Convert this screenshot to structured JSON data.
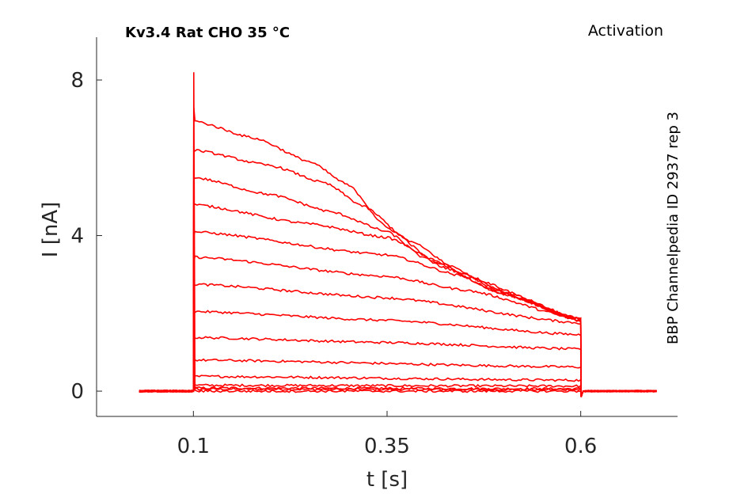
{
  "chart_data": {
    "type": "line",
    "title": "Kv3.4  Rat  CHO  35 °C",
    "protocol": "Activation",
    "side_label": "BBP Channelpedia ID 2937 rep 3",
    "xlabel": "t [s]",
    "ylabel": "I [nA]",
    "xlim": [
      -0.025,
      0.725
    ],
    "ylim": [
      -0.65,
      9.1
    ],
    "x_ticks": [
      0.1,
      0.35,
      0.6
    ],
    "x_tick_labels": [
      "0.1",
      "0.35",
      "0.6"
    ],
    "y_ticks": [
      0,
      4,
      8
    ],
    "y_tick_labels": [
      "0",
      "4",
      "8"
    ],
    "grid": false,
    "line_color": "#ff0000",
    "pulse": {
      "start": 0.1,
      "end": 0.6
    },
    "baseline": {
      "x_start": 0.03,
      "x_end": 0.7,
      "value": 0
    },
    "series": [
      {
        "peak": 0.05,
        "x": [
          0.1,
          0.6
        ],
        "y": [
          0.05,
          0.04
        ]
      },
      {
        "peak": 0.1,
        "x": [
          0.1,
          0.6
        ],
        "y": [
          0.08,
          0.06
        ]
      },
      {
        "peak": 0.22,
        "x": [
          0.1,
          0.6
        ],
        "y": [
          0.15,
          0.13
        ]
      },
      {
        "peak": 0.45,
        "x": [
          0.1,
          0.6
        ],
        "y": [
          0.38,
          0.28
        ]
      },
      {
        "peak": 0.85,
        "x": [
          0.1,
          0.6
        ],
        "y": [
          0.8,
          0.62
        ]
      },
      {
        "peak": 1.4,
        "x": [
          0.1,
          0.35,
          0.6
        ],
        "y": [
          1.38,
          1.25,
          1.08
        ]
      },
      {
        "peak": 2.05,
        "x": [
          0.1,
          0.35,
          0.6
        ],
        "y": [
          2.05,
          1.82,
          1.45
        ]
      },
      {
        "peak": 2.75,
        "x": [
          0.1,
          0.35,
          0.6
        ],
        "y": [
          2.75,
          2.4,
          1.75
        ]
      },
      {
        "peak": 3.3,
        "x": [
          0.1,
          0.35,
          0.45,
          0.6
        ],
        "y": [
          3.45,
          2.95,
          2.6,
          1.85
        ]
      },
      {
        "peak": 4.0,
        "x": [
          0.1,
          0.35,
          0.45,
          0.6
        ],
        "y": [
          4.1,
          3.5,
          2.95,
          1.85
        ]
      },
      {
        "peak": 4.8,
        "x": [
          0.1,
          0.25,
          0.35,
          0.42,
          0.5,
          0.6
        ],
        "y": [
          4.8,
          4.3,
          3.95,
          3.3,
          2.55,
          1.85
        ]
      },
      {
        "peak": 5.5,
        "x": [
          0.1,
          0.2,
          0.28,
          0.35,
          0.4,
          0.5,
          0.6
        ],
        "y": [
          5.5,
          5.05,
          4.6,
          4.1,
          3.4,
          2.5,
          1.8
        ]
      },
      {
        "peak": 6.2,
        "x": [
          0.1,
          0.2,
          0.27,
          0.32,
          0.38,
          0.45,
          0.52,
          0.6
        ],
        "y": [
          6.2,
          5.8,
          5.35,
          4.75,
          3.85,
          3.0,
          2.4,
          1.8
        ]
      },
      {
        "peak": 7.3,
        "x": [
          0.1,
          0.18,
          0.25,
          0.3,
          0.35,
          0.42,
          0.5,
          0.6
        ],
        "y": [
          6.95,
          6.5,
          5.9,
          5.3,
          4.2,
          3.2,
          2.5,
          1.8
        ]
      },
      {
        "peak": 8.2,
        "x": [
          0.1,
          0.6
        ],
        "y": [
          0.0,
          0.0
        ]
      }
    ]
  }
}
